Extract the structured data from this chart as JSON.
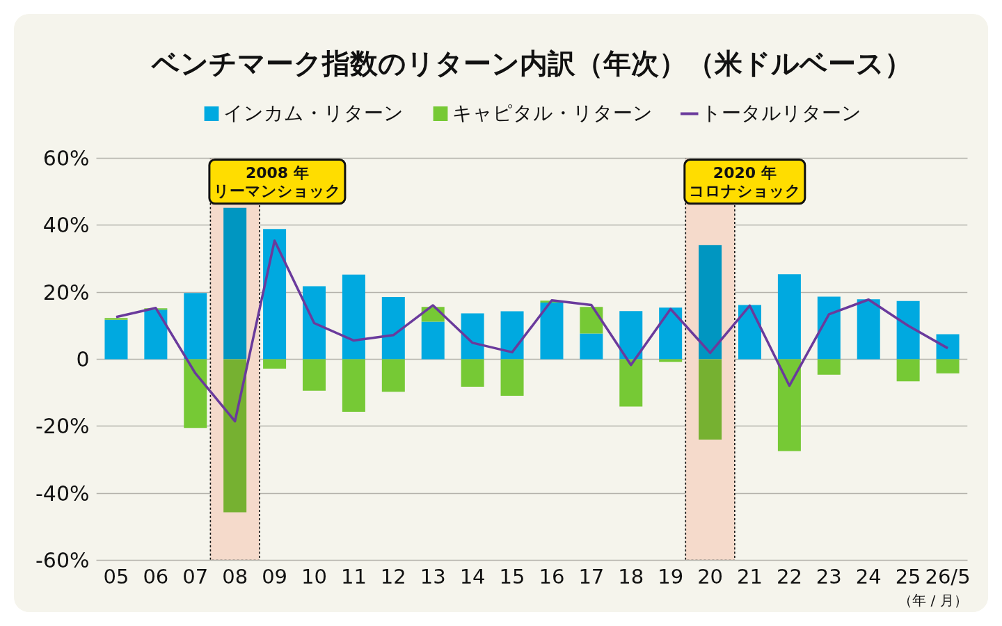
{
  "chart_data": {
    "type": "bar",
    "title": "ベンチマーク指数のリターン内訳（年次）（米ドルベース）",
    "categories": [
      "05",
      "06",
      "07",
      "08",
      "09",
      "10",
      "11",
      "12",
      "13",
      "14",
      "15",
      "16",
      "17",
      "18",
      "19",
      "20",
      "21",
      "22",
      "23",
      "24",
      "25",
      "26/5"
    ],
    "stacked": true,
    "series": [
      {
        "name": "インカム・リターン",
        "color": "#00a9e0",
        "colors": [
          "#00a9e0",
          "#00a9e0",
          "#00a9e0",
          "#0096c1",
          "#00a9e0",
          "#00a9e0",
          "#00a9e0",
          "#00a9e0",
          "#00a9e0",
          "#00a9e0",
          "#00a9e0",
          "#00a9e0",
          "#00a9e0",
          "#00a9e0",
          "#00a9e0",
          "#0096c1",
          "#00a9e0",
          "#00a9e0",
          "#00a9e0",
          "#00a9e0",
          "#00a9e0",
          "#00a9e0"
        ],
        "values": [
          11.8,
          14.8,
          19.8,
          45.2,
          38.9,
          21.8,
          25.3,
          18.6,
          11.2,
          13.7,
          14.3,
          16.9,
          7.7,
          14.4,
          15.4,
          34.1,
          16.2,
          25.4,
          18.7,
          17.9,
          17.4,
          7.5
        ]
      },
      {
        "name": "キャピタル・リターン",
        "color": "#76c935",
        "colors": [
          "#76c935",
          "#76c935",
          "#76c935",
          "#76b131",
          "#76c935",
          "#76c935",
          "#76c935",
          "#76c935",
          "#76c935",
          "#76c935",
          "#76c935",
          "#76c935",
          "#76c935",
          "#76c935",
          "#76c935",
          "#76b131",
          "#76c935",
          "#76c935",
          "#76c935",
          "#76c935",
          "#76c935",
          "#76c935"
        ],
        "values": [
          0.5,
          0.4,
          -20.5,
          -45.7,
          -2.8,
          -9.4,
          -15.7,
          -9.7,
          4.4,
          -8.2,
          -10.9,
          0.6,
          7.9,
          -14.1,
          -0.8,
          -24.0,
          null,
          -27.4,
          -4.6,
          null,
          -6.6,
          -4.2
        ]
      },
      {
        "name": "トータルリターン",
        "type": "line",
        "color": "#6a3a9c",
        "values": [
          12.6,
          15.3,
          -4.2,
          -18.5,
          35.4,
          10.8,
          5.6,
          7.2,
          16.1,
          4.9,
          2.1,
          17.6,
          16.2,
          -1.7,
          15.0,
          1.9,
          16.0,
          -7.9,
          13.4,
          17.8,
          10.0,
          3.3
        ]
      }
    ],
    "ylim": [
      -60,
      60
    ],
    "yticks": [
      {
        "value": -60,
        "label": "-60%"
      },
      {
        "value": -40,
        "label": "-40%"
      },
      {
        "value": -20,
        "label": "-20%"
      },
      0,
      {
        "value": 20,
        "label": "20%"
      },
      {
        "value": 40,
        "label": "40%"
      },
      {
        "value": 60,
        "label": "60%"
      }
    ],
    "grid": "y",
    "legend": "top",
    "bands": [
      {
        "axis": "x",
        "from": "08",
        "to": "08",
        "label": "2008 年リーマンショック",
        "color": "#f5dacb"
      },
      {
        "axis": "x",
        "from": "20",
        "to": "20",
        "label": "2020 年コロナショック",
        "color": "#f5dacb"
      }
    ],
    "annotations": [
      "（年 / 月）"
    ]
  }
}
